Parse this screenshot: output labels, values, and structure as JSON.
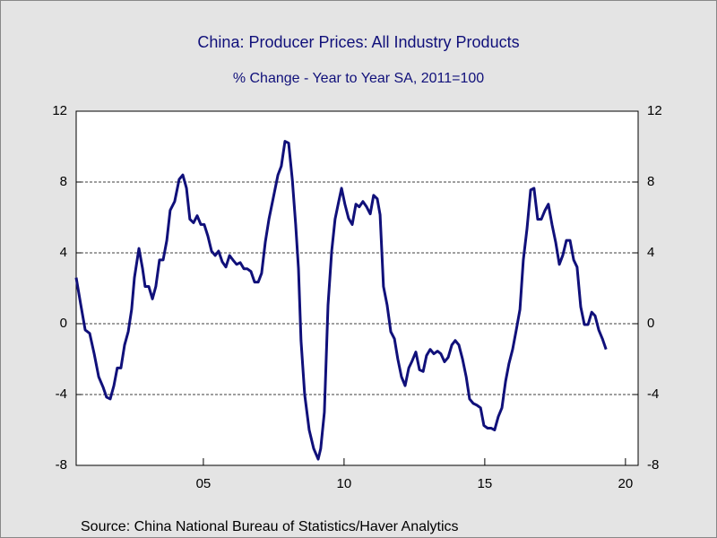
{
  "chart_data": {
    "type": "line",
    "title": "China: Producer Prices: All Industry Products",
    "subtitle": "% Change - Year to Year    SA, 2011=100",
    "source": "Source:  China National Bureau of Statistics/Haver Analytics",
    "x": [
      2000.48,
      2000.64,
      2000.8,
      2000.96,
      2001.12,
      2001.28,
      2001.44,
      2001.56,
      2001.69,
      2001.82,
      2001.94,
      2002.07,
      2002.2,
      2002.33,
      2002.45,
      2002.55,
      2002.71,
      2002.84,
      2002.93,
      2003.06,
      2003.19,
      2003.31,
      2003.44,
      2003.57,
      2003.7,
      2003.82,
      2003.98,
      2004.14,
      2004.27,
      2004.4,
      2004.52,
      2004.65,
      2004.78,
      2004.91,
      2005.03,
      2005.16,
      2005.29,
      2005.42,
      2005.54,
      2005.67,
      2005.8,
      2005.93,
      2006.05,
      2006.18,
      2006.31,
      2006.44,
      2006.56,
      2006.69,
      2006.82,
      2006.95,
      2007.07,
      2007.2,
      2007.33,
      2007.49,
      2007.65,
      2007.77,
      2007.9,
      2008.03,
      2008.16,
      2008.28,
      2008.38,
      2008.47,
      2008.6,
      2008.76,
      2008.92,
      2009.08,
      2009.17,
      2009.3,
      2009.43,
      2009.56,
      2009.68,
      2009.81,
      2009.91,
      2010.03,
      2010.16,
      2010.29,
      2010.42,
      2010.54,
      2010.67,
      2010.8,
      2010.93,
      2011.05,
      2011.18,
      2011.28,
      2011.4,
      2011.53,
      2011.66,
      2011.79,
      2011.91,
      2012.04,
      2012.17,
      2012.3,
      2012.42,
      2012.55,
      2012.68,
      2012.81,
      2012.93,
      2013.06,
      2013.19,
      2013.32,
      2013.44,
      2013.57,
      2013.7,
      2013.83,
      2013.95,
      2014.08,
      2014.21,
      2014.34,
      2014.46,
      2014.59,
      2014.72,
      2014.85,
      2014.97,
      2015.1,
      2015.23,
      2015.35,
      2015.48,
      2015.61,
      2015.74,
      2015.86,
      2015.99,
      2016.12,
      2016.25,
      2016.37,
      2016.5,
      2016.63,
      2016.75,
      2016.88,
      2017.01,
      2017.14,
      2017.26,
      2017.39,
      2017.52,
      2017.65,
      2017.77,
      2017.9,
      2018.03,
      2018.16,
      2018.28,
      2018.41,
      2018.54,
      2018.67,
      2018.8,
      2018.92,
      2019.05,
      2019.18,
      2019.31
    ],
    "series": [
      {
        "color": "#10107a",
        "values": [
          2.6,
          1.1,
          -0.35,
          -0.55,
          -1.7,
          -3.0,
          -3.6,
          -4.15,
          -4.25,
          -3.5,
          -2.5,
          -2.5,
          -1.2,
          -0.45,
          0.8,
          2.6,
          4.25,
          3.1,
          2.1,
          2.1,
          1.4,
          2.1,
          3.6,
          3.6,
          4.7,
          6.4,
          6.9,
          8.15,
          8.4,
          7.65,
          5.9,
          5.7,
          6.1,
          5.6,
          5.6,
          4.95,
          4.1,
          3.85,
          4.1,
          3.5,
          3.2,
          3.85,
          3.6,
          3.35,
          3.45,
          3.1,
          3.1,
          2.95,
          2.35,
          2.35,
          2.85,
          4.6,
          5.9,
          7.15,
          8.4,
          8.9,
          10.3,
          10.2,
          8.15,
          5.6,
          3.1,
          -0.95,
          -4.0,
          -6.0,
          -7.05,
          -7.65,
          -7.05,
          -5.0,
          1.05,
          4.1,
          5.9,
          6.9,
          7.65,
          6.75,
          5.95,
          5.6,
          6.75,
          6.6,
          6.9,
          6.6,
          6.2,
          7.25,
          7.05,
          6.15,
          2.1,
          1.05,
          -0.45,
          -0.85,
          -2.0,
          -3.0,
          -3.5,
          -2.5,
          -2.1,
          -1.6,
          -2.6,
          -2.7,
          -1.8,
          -1.45,
          -1.7,
          -1.55,
          -1.7,
          -2.15,
          -1.9,
          -1.2,
          -0.95,
          -1.2,
          -2.0,
          -3.0,
          -4.25,
          -4.5,
          -4.6,
          -4.75,
          -5.75,
          -5.9,
          -5.9,
          -6.0,
          -5.25,
          -4.75,
          -3.25,
          -2.25,
          -1.45,
          -0.35,
          0.8,
          3.6,
          5.35,
          7.55,
          7.65,
          5.9,
          5.9,
          6.4,
          6.75,
          5.6,
          4.6,
          3.35,
          3.85,
          4.7,
          4.7,
          3.6,
          3.2,
          0.95,
          -0.05,
          -0.05,
          0.65,
          0.45,
          -0.35,
          -0.85,
          -1.45
        ]
      }
    ],
    "xlim": [
      2000.48,
      2020.45
    ],
    "xticks": [
      {
        "value": 2005,
        "label": "05"
      },
      {
        "value": 2010,
        "label": "10"
      },
      {
        "value": 2015,
        "label": "15"
      },
      {
        "value": 2020,
        "label": "20"
      }
    ],
    "ylim": [
      -8,
      12
    ],
    "yticks": [
      -8,
      -4,
      0,
      4,
      8,
      12
    ],
    "grid": true
  }
}
